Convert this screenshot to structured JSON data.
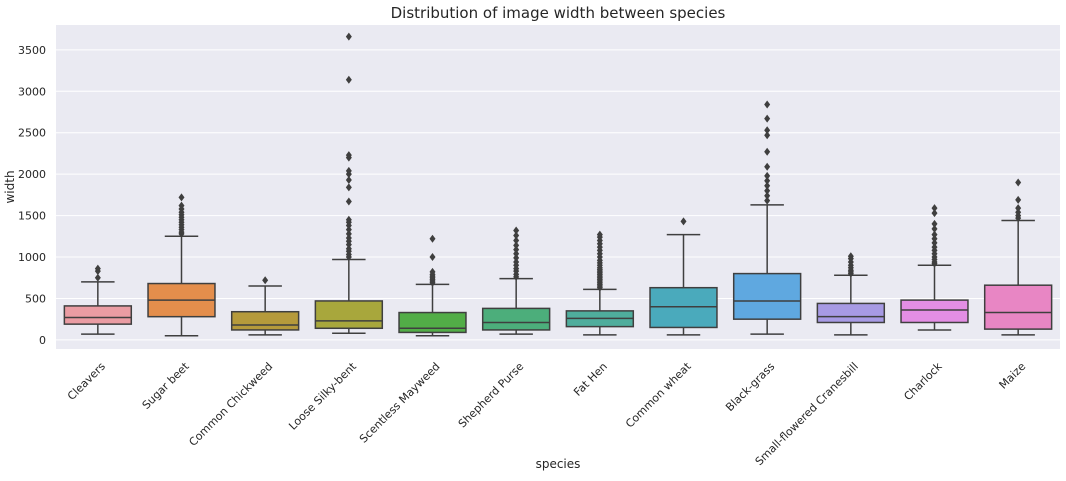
{
  "chart_data": {
    "type": "box",
    "title": "Distribution of image width between species",
    "xlabel": "species",
    "ylabel": "width",
    "ylim": [
      -110,
      3800
    ],
    "yticks": [
      0,
      500,
      1000,
      1500,
      2000,
      2500,
      3000,
      3500
    ],
    "grid": true,
    "legend": "none",
    "categories": [
      "Cleavers",
      "Sugar beet",
      "Common Chickweed",
      "Loose Silky-bent",
      "Scentless Mayweed",
      "Shepherd Purse",
      "Fat Hen",
      "Common wheat",
      "Black-grass",
      "Small-flowered Cranesbill",
      "Charlock",
      "Maize"
    ],
    "colors": [
      "#ea9ca3",
      "#e48e4c",
      "#b59a3b",
      "#a8a73c",
      "#52ad47",
      "#4cae7b",
      "#4fad9c",
      "#4aaabc",
      "#5fa8e0",
      "#a79ae4",
      "#e38ee4",
      "#e886c4"
    ],
    "boxes": [
      {
        "whisker_low": 70,
        "q1": 190,
        "median": 270,
        "q3": 410,
        "whisker_high": 700,
        "outliers": [
          750,
          830,
          860
        ]
      },
      {
        "whisker_low": 50,
        "q1": 280,
        "median": 480,
        "q3": 680,
        "whisker_high": 1250,
        "outliers": [
          1280,
          1300,
          1330,
          1360,
          1390,
          1420,
          1450,
          1480,
          1510,
          1540,
          1580,
          1620,
          1720
        ]
      },
      {
        "whisker_low": 60,
        "q1": 120,
        "median": 180,
        "q3": 340,
        "whisker_high": 650,
        "outliers": [
          720
        ]
      },
      {
        "whisker_low": 80,
        "q1": 140,
        "median": 230,
        "q3": 470,
        "whisker_high": 970,
        "outliers": [
          1000,
          1030,
          1070,
          1100,
          1150,
          1190,
          1230,
          1280,
          1330,
          1380,
          1420,
          1450,
          1670,
          1840,
          1930,
          2000,
          2040,
          2200,
          2230,
          3140,
          3660
        ]
      },
      {
        "whisker_low": 50,
        "q1": 90,
        "median": 140,
        "q3": 330,
        "whisker_high": 670,
        "outliers": [
          690,
          710,
          730,
          750,
          770,
          790,
          820,
          1000,
          1220
        ]
      },
      {
        "whisker_low": 70,
        "q1": 120,
        "median": 210,
        "q3": 380,
        "whisker_high": 740,
        "outliers": [
          760,
          790,
          830,
          860,
          900,
          940,
          990,
          1040,
          1090,
          1140,
          1200,
          1260,
          1320
        ]
      },
      {
        "whisker_low": 60,
        "q1": 160,
        "median": 260,
        "q3": 350,
        "whisker_high": 610,
        "outliers": [
          630,
          650,
          670,
          690,
          710,
          730,
          750,
          770,
          790,
          810,
          830,
          850,
          870,
          900,
          930,
          960,
          1000,
          1040,
          1080,
          1120,
          1160,
          1200,
          1240,
          1270
        ]
      },
      {
        "whisker_low": 60,
        "q1": 150,
        "median": 400,
        "q3": 630,
        "whisker_high": 1270,
        "outliers": [
          1430
        ]
      },
      {
        "whisker_low": 70,
        "q1": 250,
        "median": 470,
        "q3": 800,
        "whisker_high": 1630,
        "outliers": [
          1680,
          1740,
          1800,
          1860,
          1920,
          1980,
          2090,
          2270,
          2470,
          2530,
          2670,
          2840
        ]
      },
      {
        "whisker_low": 60,
        "q1": 210,
        "median": 280,
        "q3": 440,
        "whisker_high": 780,
        "outliers": [
          800,
          820,
          840,
          870,
          900,
          940,
          980,
          1010
        ]
      },
      {
        "whisker_low": 120,
        "q1": 210,
        "median": 360,
        "q3": 480,
        "whisker_high": 900,
        "outliers": [
          920,
          940,
          970,
          1000,
          1040,
          1080,
          1120,
          1170,
          1220,
          1270,
          1340,
          1400,
          1530,
          1590
        ]
      },
      {
        "whisker_low": 60,
        "q1": 130,
        "median": 330,
        "q3": 660,
        "whisker_high": 1440,
        "outliers": [
          1470,
          1500,
          1540,
          1590,
          1690,
          1900
        ]
      }
    ]
  }
}
